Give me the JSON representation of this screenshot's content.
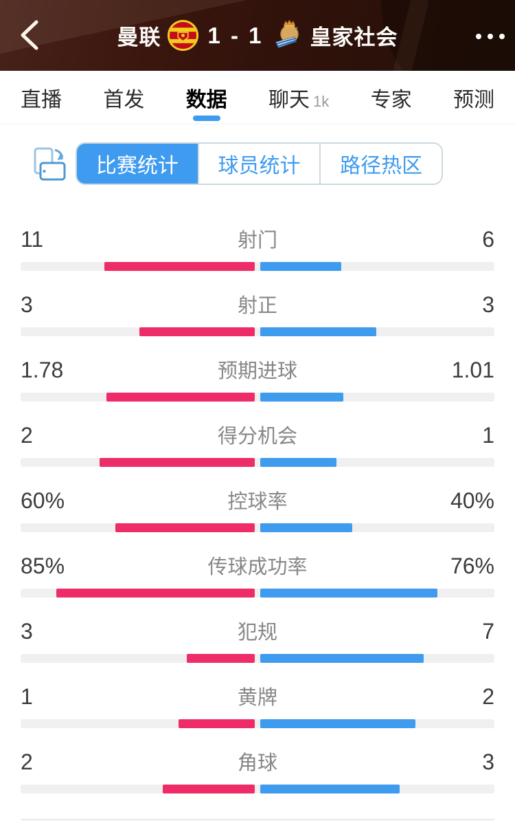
{
  "header": {
    "home_team": "曼联",
    "away_team": "皇家社会",
    "score": "1 - 1"
  },
  "icons": {
    "back": "chevron-left",
    "more": "ellipsis-horizontal",
    "rotate": "rotate-screen",
    "home_crest": "manchester-united-crest",
    "away_crest": "real-sociedad-crest"
  },
  "tabs": [
    {
      "label": "直播",
      "selected": false
    },
    {
      "label": "首发",
      "selected": false
    },
    {
      "label": "数据",
      "selected": true
    },
    {
      "label": "聊天",
      "badge": "1k",
      "selected": false
    },
    {
      "label": "专家",
      "selected": false
    },
    {
      "label": "预测",
      "selected": false
    }
  ],
  "segments": [
    {
      "label": "比赛统计",
      "selected": true
    },
    {
      "label": "球员统计",
      "selected": false
    },
    {
      "label": "路径热区",
      "selected": false
    }
  ],
  "colors": {
    "home_bar": "#ee2d68",
    "away_bar": "#3f9bee",
    "accent": "#3e9bf0",
    "bar_track": "#f0f0f0"
  },
  "stats": [
    {
      "label": "射门",
      "home": "11",
      "away": "6",
      "home_val": 11,
      "away_val": 6,
      "pct": false
    },
    {
      "label": "射正",
      "home": "3",
      "away": "3",
      "home_val": 3,
      "away_val": 3,
      "pct": false
    },
    {
      "label": "预期进球",
      "home": "1.78",
      "away": "1.01",
      "home_val": 1.78,
      "away_val": 1.01,
      "pct": false
    },
    {
      "label": "得分机会",
      "home": "2",
      "away": "1",
      "home_val": 2,
      "away_val": 1,
      "pct": false
    },
    {
      "label": "控球率",
      "home": "60%",
      "away": "40%",
      "home_val": 60,
      "away_val": 40,
      "pct": true
    },
    {
      "label": "传球成功率",
      "home": "85%",
      "away": "76%",
      "home_val": 85,
      "away_val": 76,
      "pct": true
    },
    {
      "label": "犯规",
      "home": "3",
      "away": "7",
      "home_val": 3,
      "away_val": 7,
      "pct": false
    },
    {
      "label": "黄牌",
      "home": "1",
      "away": "2",
      "home_val": 1,
      "away_val": 2,
      "pct": false
    },
    {
      "label": "角球",
      "home": "2",
      "away": "3",
      "home_val": 2,
      "away_val": 3,
      "pct": false
    }
  ]
}
